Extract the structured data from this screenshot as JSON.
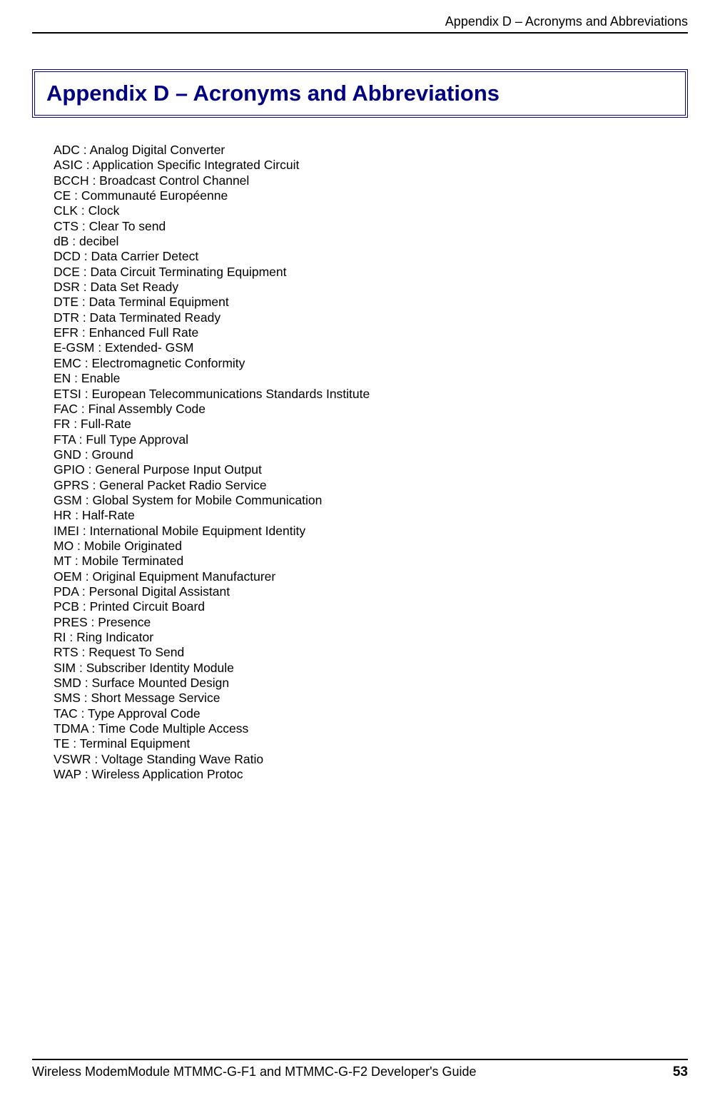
{
  "header": {
    "text": "Appendix D – Acronyms and Abbreviations"
  },
  "title": "Appendix D – Acronyms and Abbreviations",
  "styling": {
    "title_color": "#000080",
    "title_border_color": "#000080",
    "title_fontsize": 31,
    "body_fontsize": 17.5,
    "header_fontsize": 18,
    "footer_fontsize": 18,
    "rule_color": "#000000",
    "background_color": "#ffffff",
    "text_color": "#000000"
  },
  "acronyms": [
    "ADC : Analog Digital Converter",
    "ASIC : Application Specific Integrated Circuit",
    "BCCH : Broadcast Control Channel",
    "CE : Communauté Européenne",
    "CLK : Clock",
    "CTS : Clear To send",
    "dB : decibel",
    "DCD : Data Carrier Detect",
    "DCE : Data Circuit Terminating Equipment",
    "DSR : Data Set Ready",
    "DTE : Data Terminal Equipment",
    "DTR : Data Terminated Ready",
    "EFR : Enhanced Full Rate",
    "E-GSM : Extended- GSM",
    "EMC : Electromagnetic Conformity",
    "EN : Enable",
    "ETSI : European Telecommunications Standards Institute",
    "FAC : Final Assembly Code",
    "FR : Full-Rate",
    "FTA : Full Type Approval",
    "GND : Ground",
    "GPIO : General Purpose Input Output",
    "GPRS : General Packet Radio Service",
    "GSM : Global System for Mobile Communication",
    "HR : Half-Rate",
    "IMEI : International Mobile Equipment Identity",
    "MO : Mobile Originated",
    "MT : Mobile Terminated",
    "OEM : Original Equipment Manufacturer",
    "PDA : Personal Digital Assistant",
    "PCB : Printed Circuit Board",
    "PRES : Presence",
    "RI : Ring Indicator",
    "RTS : Request To Send",
    "SIM : Subscriber Identity Module",
    "SMD : Surface Mounted Design",
    "SMS : Short Message Service",
    "TAC : Type Approval Code",
    "TDMA : Time Code Multiple Access",
    "TE : Terminal Equipment",
    "VSWR : Voltage Standing Wave Ratio",
    "WAP : Wireless Application Protoc"
  ],
  "footer": {
    "text": "Wireless ModemModule MTMMC-G-F1 and MTMMC-G-F2 Developer's Guide",
    "page": "53"
  }
}
